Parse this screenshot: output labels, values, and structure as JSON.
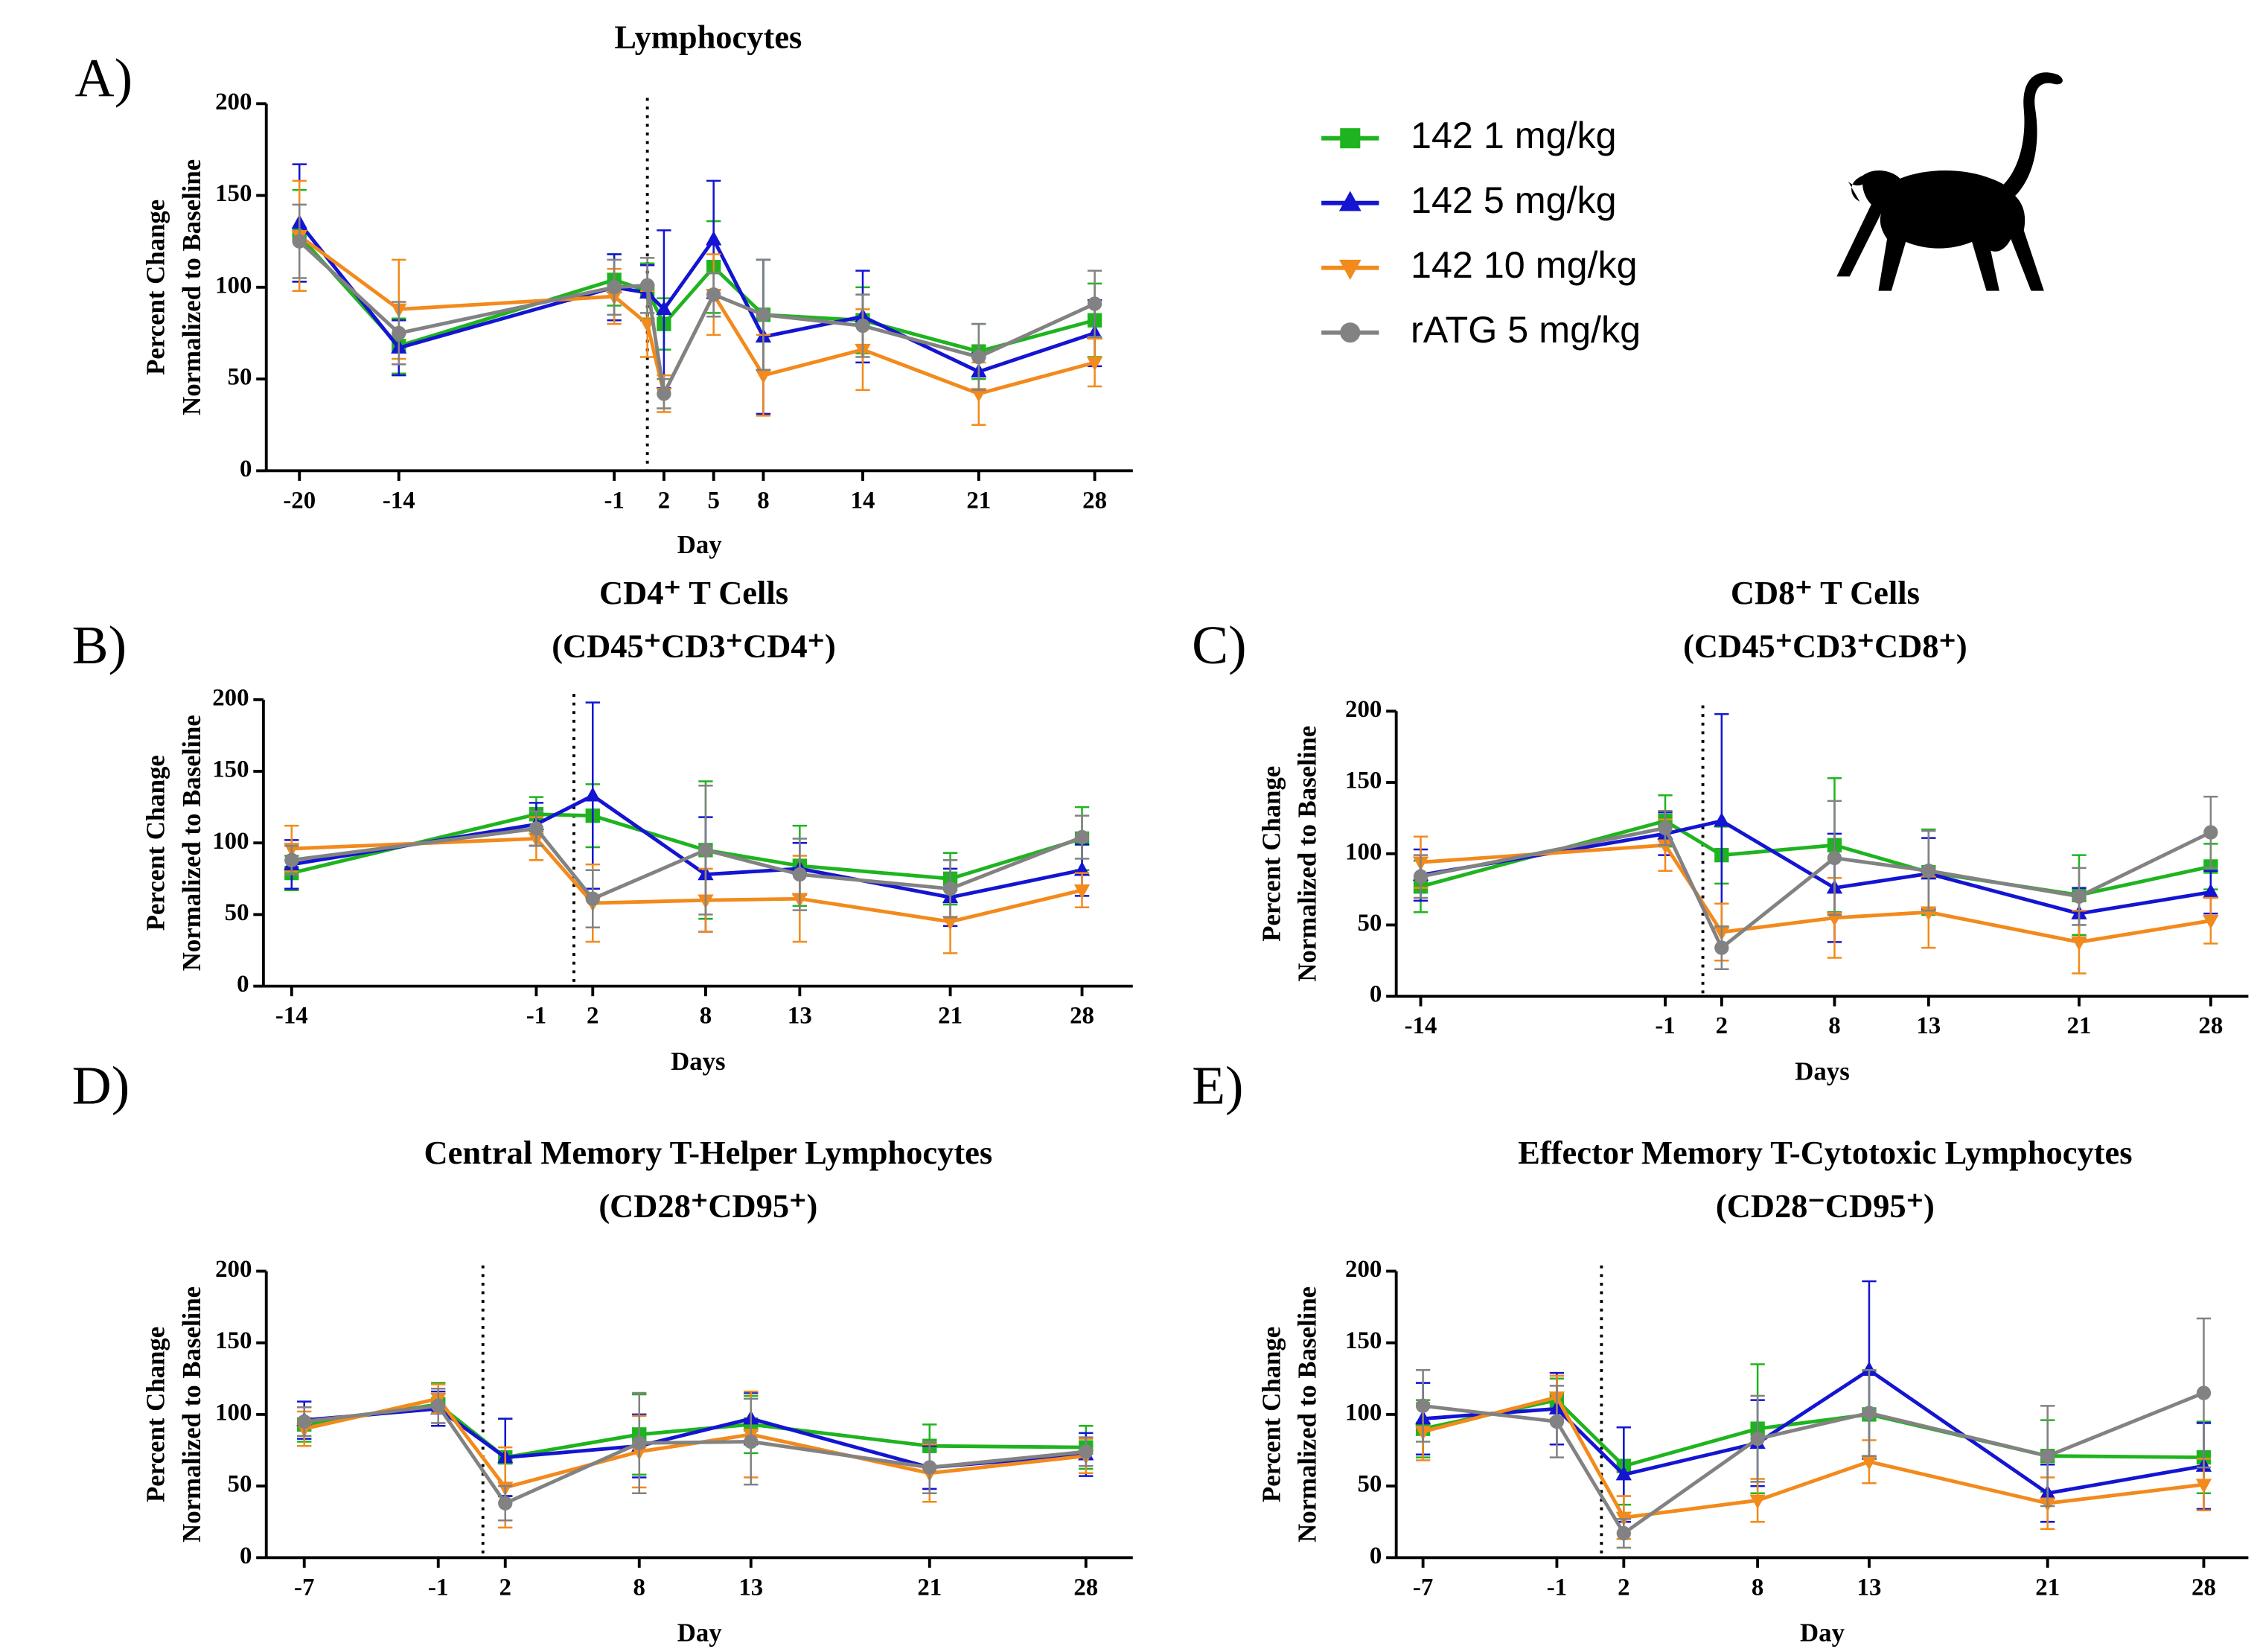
{
  "chart_data": [
    {
      "type": "line",
      "panel": "A)",
      "title": "Lymphocytes",
      "xlabel": "Day",
      "ylabel": [
        "Percent Change",
        "Normalized to Baseline"
      ],
      "x": [
        -20,
        -14,
        -1,
        1,
        2,
        5,
        8,
        14,
        21,
        28
      ],
      "xlim": [
        -22,
        30.3
      ],
      "xticks": [
        -20,
        -14,
        -1,
        2,
        5,
        8,
        14,
        21,
        28
      ],
      "ylim": [
        0,
        200
      ],
      "yticks": [
        0,
        50,
        100,
        150,
        200
      ],
      "vline": 1,
      "legend": "right",
      "series": [
        {
          "name": "142 1 mg/kg",
          "color": "#1fb41f",
          "marker": "square",
          "values": [
            128,
            68,
            104,
            98,
            80,
            111,
            85,
            82,
            65,
            82
          ],
          "errors": [
            25,
            15,
            14,
            15,
            14,
            25,
            30,
            18,
            15,
            20
          ]
        },
        {
          "name": "142 5 mg/kg",
          "color": "#1414d2",
          "marker": "triangle-up",
          "values": [
            135,
            67,
            100,
            97,
            88,
            126,
            73,
            84,
            54,
            75
          ],
          "errors": [
            32,
            15,
            18,
            15,
            43,
            32,
            42,
            25,
            10,
            18
          ]
        },
        {
          "name": "142 10 mg/kg",
          "color": "#f28a1c",
          "marker": "triangle-down",
          "values": [
            128,
            88,
            95,
            80,
            42,
            96,
            52,
            66,
            42,
            59
          ],
          "errors": [
            30,
            27,
            15,
            18,
            10,
            22,
            22,
            22,
            17,
            13
          ]
        },
        {
          "name": "rATG 5 mg/kg",
          "color": "#828282",
          "marker": "circle",
          "values": [
            125,
            75,
            100,
            101,
            42,
            96,
            85,
            79,
            62,
            91
          ],
          "errors": [
            20,
            17,
            15,
            15,
            8,
            12,
            30,
            17,
            18,
            18
          ]
        }
      ]
    },
    {
      "type": "line",
      "panel": "B)",
      "title": "CD4⁺ T Cells",
      "subtitle": "(CD45⁺CD3⁺CD4⁺)",
      "xlabel": "Days",
      "ylabel": [
        "Percent Change",
        "Normalized to Baseline"
      ],
      "x": [
        -14,
        -1,
        2,
        8,
        13,
        21,
        28
      ],
      "xlim": [
        -15.5,
        30.7
      ],
      "xticks": [
        -14,
        -1,
        2,
        8,
        13,
        21,
        28
      ],
      "ylim": [
        0,
        200
      ],
      "yticks": [
        0,
        50,
        100,
        150,
        200
      ],
      "vline": 1,
      "series": [
        {
          "color": "#1fb41f",
          "marker": "square",
          "values": [
            79,
            120,
            119,
            95,
            84,
            75,
            103
          ],
          "errors": [
            12,
            12,
            22,
            48,
            28,
            18,
            22
          ]
        },
        {
          "color": "#1414d2",
          "marker": "triangle-up",
          "values": [
            85,
            113,
            133,
            78,
            82,
            62,
            81
          ],
          "errors": [
            17,
            15,
            65,
            40,
            18,
            20,
            18
          ]
        },
        {
          "color": "#f28a1c",
          "marker": "triangle-down",
          "values": [
            96,
            103,
            58,
            60,
            61,
            45,
            67
          ],
          "errors": [
            16,
            15,
            27,
            22,
            30,
            22,
            12
          ]
        },
        {
          "color": "#828282",
          "marker": "circle",
          "values": [
            88,
            110,
            61,
            95,
            78,
            68,
            104
          ],
          "errors": [
            10,
            12,
            20,
            45,
            25,
            20,
            15
          ]
        }
      ]
    },
    {
      "type": "line",
      "panel": "C)",
      "title": "CD8⁺ T Cells",
      "subtitle": "(CD45⁺CD3⁺CD8⁺)",
      "xlabel": "Days",
      "ylabel": [
        "Percent Change",
        "Normalized to Baseline"
      ],
      "x": [
        -14,
        -1,
        2,
        8,
        13,
        21,
        28
      ],
      "xlim": [
        -15.3,
        30
      ],
      "xticks": [
        -14,
        -1,
        2,
        8,
        13,
        21,
        28
      ],
      "ylim": [
        0,
        200
      ],
      "yticks": [
        0,
        50,
        100,
        150,
        200
      ],
      "vline": 1,
      "series": [
        {
          "color": "#1fb41f",
          "marker": "square",
          "values": [
            77,
            123,
            99,
            106,
            87,
            71,
            91
          ],
          "errors": [
            18,
            18,
            20,
            47,
            30,
            28,
            16
          ]
        },
        {
          "color": "#1414d2",
          "marker": "triangle-up",
          "values": [
            85,
            114,
            123,
            76,
            86,
            58,
            73
          ],
          "errors": [
            18,
            15,
            75,
            38,
            25,
            18,
            15
          ]
        },
        {
          "color": "#f28a1c",
          "marker": "triangle-down",
          "values": [
            94,
            106,
            45,
            55,
            59,
            38,
            53
          ],
          "errors": [
            18,
            18,
            20,
            28,
            25,
            22,
            16
          ]
        },
        {
          "color": "#828282",
          "marker": "circle",
          "values": [
            84,
            118,
            34,
            97,
            88,
            70,
            115
          ],
          "errors": [
            15,
            12,
            15,
            40,
            28,
            20,
            25
          ]
        }
      ]
    },
    {
      "type": "line",
      "panel": "D)",
      "title": "Central Memory T-Helper Lymphocytes",
      "subtitle": "(CD28⁺CD95⁺)",
      "xlabel": "Day",
      "ylabel": [
        "Percent Change",
        "Normalized to Baseline"
      ],
      "x": [
        -7,
        -1,
        2,
        8,
        13,
        21,
        28
      ],
      "xlim": [
        -8.7,
        30.1
      ],
      "xticks": [
        -7,
        -1,
        2,
        8,
        13,
        21,
        28
      ],
      "ylim": [
        0,
        200
      ],
      "yticks": [
        0,
        50,
        100,
        150,
        200
      ],
      "vline": 1,
      "series": [
        {
          "color": "#1fb41f",
          "marker": "square",
          "values": [
            93,
            107,
            70,
            86,
            93,
            78,
            77
          ],
          "errors": [
            12,
            15,
            27,
            28,
            20,
            15,
            15
          ]
        },
        {
          "color": "#1414d2",
          "marker": "triangle-up",
          "values": [
            96,
            104,
            70,
            78,
            97,
            63,
            72
          ],
          "errors": [
            13,
            12,
            27,
            22,
            18,
            15,
            15
          ]
        },
        {
          "color": "#f28a1c",
          "marker": "triangle-down",
          "values": [
            90,
            111,
            49,
            74,
            86,
            59,
            71
          ],
          "errors": [
            12,
            10,
            28,
            25,
            30,
            20,
            12
          ]
        },
        {
          "color": "#828282",
          "marker": "circle",
          "values": [
            95,
            106,
            38,
            80,
            81,
            63,
            74
          ],
          "errors": [
            10,
            12,
            12,
            35,
            30,
            18,
            10
          ]
        }
      ]
    },
    {
      "type": "line",
      "panel": "E)",
      "title": "Effector Memory T-Cytotoxic Lymphocytes",
      "subtitle": "(CD28⁻CD95⁺)",
      "xlabel": "Day",
      "ylabel": [
        "Percent Change",
        "Normalized to Baseline"
      ],
      "x": [
        -7,
        -1,
        2,
        8,
        13,
        21,
        28
      ],
      "xlim": [
        -8.2,
        30
      ],
      "xticks": [
        -7,
        -1,
        2,
        8,
        13,
        21,
        28
      ],
      "ylim": [
        0,
        200
      ],
      "yticks": [
        0,
        50,
        100,
        150,
        200
      ],
      "vline": 1,
      "series": [
        {
          "color": "#1fb41f",
          "marker": "square",
          "values": [
            90,
            110,
            64,
            90,
            100,
            71,
            70
          ],
          "errors": [
            20,
            15,
            27,
            45,
            30,
            25,
            25
          ]
        },
        {
          "color": "#1414d2",
          "marker": "triangle-up",
          "values": [
            97,
            104,
            58,
            80,
            131,
            45,
            64
          ],
          "errors": [
            25,
            25,
            33,
            30,
            62,
            20,
            30
          ]
        },
        {
          "color": "#f28a1c",
          "marker": "triangle-down",
          "values": [
            88,
            112,
            28,
            40,
            67,
            38,
            51
          ],
          "errors": [
            20,
            15,
            15,
            15,
            15,
            18,
            18
          ]
        },
        {
          "color": "#828282",
          "marker": "circle",
          "values": [
            106,
            95,
            17,
            83,
            101,
            71,
            115
          ],
          "errors": [
            25,
            25,
            10,
            30,
            30,
            35,
            52
          ]
        }
      ]
    }
  ]
}
